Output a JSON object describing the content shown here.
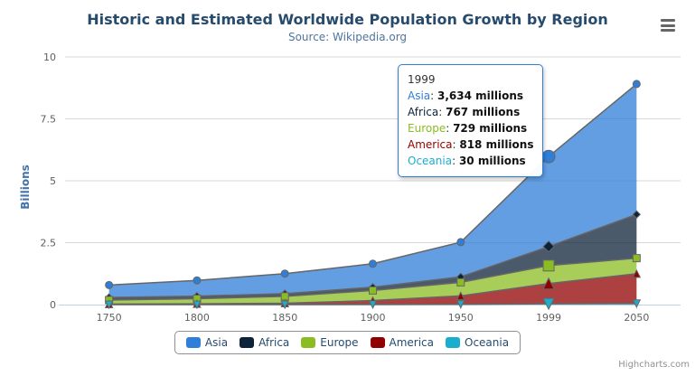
{
  "header": {
    "title": "Historic and Estimated Worldwide Population Growth by Region",
    "subtitle": "Source: Wikipedia.org"
  },
  "chart_data": {
    "type": "area",
    "stacking": "normal",
    "categories": [
      "1750",
      "1800",
      "1850",
      "1900",
      "1950",
      "1999",
      "2050"
    ],
    "series": [
      {
        "name": "Asia",
        "color": "#2f7ed8",
        "marker": "circle",
        "values": [
          502,
          635,
          809,
          947,
          1402,
          3634,
          5268
        ]
      },
      {
        "name": "Africa",
        "color": "#0d233a",
        "marker": "diamond",
        "values": [
          106,
          107,
          111,
          133,
          221,
          767,
          1766
        ]
      },
      {
        "name": "Europe",
        "color": "#8bbc21",
        "marker": "square",
        "values": [
          163,
          203,
          276,
          408,
          547,
          729,
          628
        ]
      },
      {
        "name": "America",
        "color": "#910000",
        "marker": "triangle",
        "values": [
          18,
          31,
          54,
          156,
          339,
          818,
          1201
        ]
      },
      {
        "name": "Oceania",
        "color": "#1aadce",
        "marker": "triangle-down",
        "values": [
          2,
          2,
          2,
          6,
          13,
          30,
          46
        ]
      }
    ],
    "values_unit": "millions",
    "title": "Historic and Estimated Worldwide Population Growth by Region",
    "subtitle": "Source: Wikipedia.org",
    "xlabel": "",
    "ylabel": "Billions",
    "ylim": [
      0,
      10
    ],
    "yticks": [
      0,
      2.5,
      5,
      7.5,
      10
    ],
    "ytick_labels": [
      "0",
      "2.5",
      "5",
      "7.5",
      "10"
    ],
    "grid": true,
    "legend_position": "bottom",
    "hover_index": 5,
    "style": {
      "line_color": "#666666",
      "grid_color": "#d8d8d8",
      "axis_line_color": "#c0d0e0",
      "label_color": "#606060",
      "fill_opacity": 0.75
    }
  },
  "tooltip": {
    "header": "1999",
    "rows": [
      {
        "label": "Asia",
        "value": "3,634 millions"
      },
      {
        "label": "Africa",
        "value": "767 millions"
      },
      {
        "label": "Europe",
        "value": "729 millions"
      },
      {
        "label": "America",
        "value": "818 millions"
      },
      {
        "label": "Oceania",
        "value": "30 millions"
      }
    ]
  },
  "credits": "Highcharts.com"
}
